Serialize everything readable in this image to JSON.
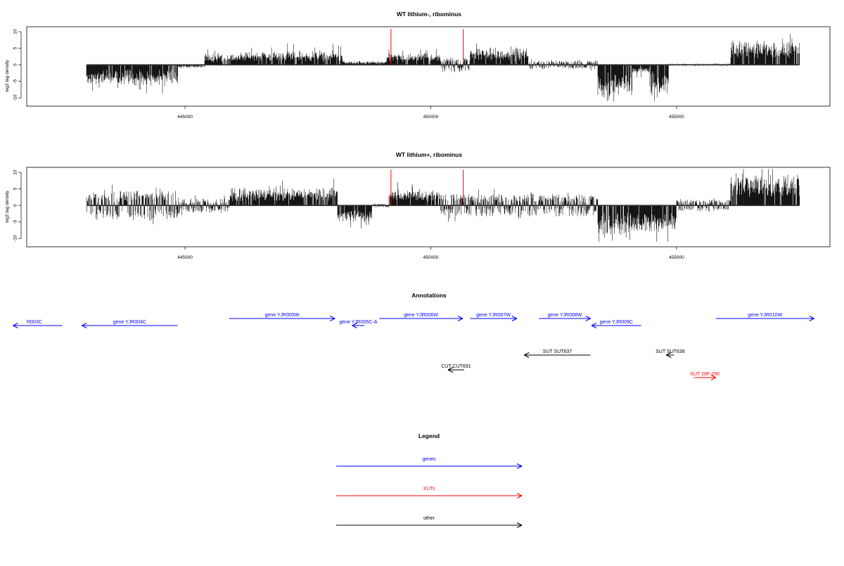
{
  "colors": {
    "gene": "#0000ff",
    "xut": "#ff0000",
    "other": "#000000",
    "marker": "#ff0000",
    "bars": "#000000"
  },
  "chart_data": [
    {
      "type": "bar",
      "title": "WT lithium-, ribominus",
      "ylabel": "log2 tag density",
      "xlim": [
        441780,
        458120
      ],
      "ylim": [
        -12.5,
        11.5
      ],
      "yticks": [
        10,
        5,
        0,
        -5,
        -10
      ],
      "xticks": [
        445000,
        450000,
        455000
      ],
      "data_range": [
        443000,
        457500
      ],
      "markers_x": [
        449190,
        450660
      ],
      "segments": [
        {
          "x0": 443000,
          "x1": 444850,
          "base": -3.2,
          "amp": 2.4,
          "sign": -1
        },
        {
          "x0": 444850,
          "x1": 445400,
          "base": -0.3,
          "amp": 0.6,
          "sign": -1
        },
        {
          "x0": 445400,
          "x1": 446200,
          "base": 1.6,
          "amp": 1.5,
          "sign": 1
        },
        {
          "x0": 446200,
          "x1": 448200,
          "base": 2.1,
          "amp": 1.8,
          "sign": 1
        },
        {
          "x0": 448200,
          "x1": 449100,
          "base": 0.4,
          "amp": 0.7,
          "sign": 1
        },
        {
          "x0": 449100,
          "x1": 450200,
          "base": 1.8,
          "amp": 1.5,
          "sign": 1
        },
        {
          "x0": 450200,
          "x1": 450800,
          "base": 0.9,
          "amp": 1.3,
          "sign": 0
        },
        {
          "x0": 450800,
          "x1": 452000,
          "base": 2.6,
          "amp": 2.0,
          "sign": 1
        },
        {
          "x0": 452000,
          "x1": 453400,
          "base": 0.5,
          "amp": 0.9,
          "sign": 0
        },
        {
          "x0": 453400,
          "x1": 454100,
          "base": -5.5,
          "amp": 3.5,
          "sign": -1
        },
        {
          "x0": 454100,
          "x1": 454450,
          "base": -1.0,
          "amp": 1.5,
          "sign": -1
        },
        {
          "x0": 454450,
          "x1": 454850,
          "base": -5.0,
          "amp": 3.5,
          "sign": -1
        },
        {
          "x0": 454850,
          "x1": 456100,
          "base": 0.0,
          "amp": 0.4,
          "sign": 0
        },
        {
          "x0": 456100,
          "x1": 457500,
          "base": 4.2,
          "amp": 2.6,
          "sign": 1
        }
      ]
    },
    {
      "type": "bar",
      "title": "WT lithium+, ribominus",
      "ylabel": "log2 tag density",
      "xlim": [
        441780,
        458120
      ],
      "ylim": [
        -12.5,
        11.5
      ],
      "yticks": [
        10,
        5,
        0,
        -5,
        -10
      ],
      "xticks": [
        445000,
        450000,
        455000
      ],
      "data_range": [
        443000,
        457500
      ],
      "markers_x": [
        449190,
        450660
      ],
      "segments": [
        {
          "x0": 443000,
          "x1": 444900,
          "base": -1.8,
          "amp": 2.5,
          "sign": 0
        },
        {
          "x0": 444900,
          "x1": 445900,
          "base": -0.6,
          "amp": 1.6,
          "sign": 0
        },
        {
          "x0": 445900,
          "x1": 448100,
          "base": 2.8,
          "amp": 2.2,
          "sign": 1
        },
        {
          "x0": 448100,
          "x1": 448800,
          "base": -2.8,
          "amp": 2.0,
          "sign": -1
        },
        {
          "x0": 448800,
          "x1": 449150,
          "base": 0.2,
          "amp": 0.4,
          "sign": 0
        },
        {
          "x0": 449150,
          "x1": 450200,
          "base": 2.6,
          "amp": 2.0,
          "sign": 1
        },
        {
          "x0": 450200,
          "x1": 453400,
          "base": 0.9,
          "amp": 2.6,
          "sign": 0
        },
        {
          "x0": 453400,
          "x1": 454100,
          "base": -4.8,
          "amp": 3.5,
          "sign": -1
        },
        {
          "x0": 454100,
          "x1": 455000,
          "base": -4.2,
          "amp": 3.8,
          "sign": -1
        },
        {
          "x0": 455000,
          "x1": 456100,
          "base": -0.6,
          "amp": 1.2,
          "sign": 0
        },
        {
          "x0": 456100,
          "x1": 457500,
          "base": 5.5,
          "amp": 3.2,
          "sign": 1
        }
      ]
    }
  ],
  "annotations": {
    "title": "Annotations",
    "xlim": [
      441780,
      458120
    ],
    "features": [
      {
        "label": "gene YJR003C",
        "display": "R003C",
        "category": "gene",
        "strand": "-",
        "start": 441500,
        "end": 442500,
        "row": 2
      },
      {
        "label": "gene YJR004C",
        "category": "gene",
        "strand": "-",
        "start": 442900,
        "end": 444850,
        "row": 2
      },
      {
        "label": "gene YJR005W",
        "category": "gene",
        "strand": "+",
        "start": 445900,
        "end": 448050,
        "row": 1
      },
      {
        "label": "gene YJR005C-A",
        "category": "gene",
        "strand": "-",
        "start": 448400,
        "end": 448650,
        "row": 2
      },
      {
        "label": "gene YJR006W",
        "category": "gene",
        "strand": "+",
        "start": 448950,
        "end": 450650,
        "row": 1
      },
      {
        "label": "gene YJR007W",
        "category": "gene",
        "strand": "+",
        "start": 450800,
        "end": 451750,
        "row": 1
      },
      {
        "label": "gene YJR008W",
        "category": "gene",
        "strand": "+",
        "start": 452200,
        "end": 453250,
        "row": 1
      },
      {
        "label": "gene YJR009C",
        "category": "gene",
        "strand": "-",
        "start": 453270,
        "end": 454280,
        "row": 2
      },
      {
        "label": "gene YJR010W",
        "category": "gene",
        "strand": "+",
        "start": 455800,
        "end": 457800,
        "row": 1
      },
      {
        "label": "SUT SUT637",
        "category": "other",
        "strand": "-",
        "start": 451900,
        "end": 453250,
        "row": 3
      },
      {
        "label": "SUT SUT638",
        "category": "other",
        "strand": "-",
        "start": 454790,
        "end": 454950,
        "row": 3
      },
      {
        "label": "CUT CUT691",
        "category": "other",
        "strand": "-",
        "start": 450350,
        "end": 450680,
        "row": 4
      },
      {
        "label": "XUT 10F-200",
        "category": "xut",
        "strand": "+",
        "start": 455350,
        "end": 455800,
        "row": 5
      }
    ]
  },
  "legend": {
    "title": "Legend",
    "items": [
      {
        "label": "genes",
        "category": "gene"
      },
      {
        "label": "XUTs",
        "category": "xut"
      },
      {
        "label": "other",
        "category": "other"
      }
    ]
  }
}
